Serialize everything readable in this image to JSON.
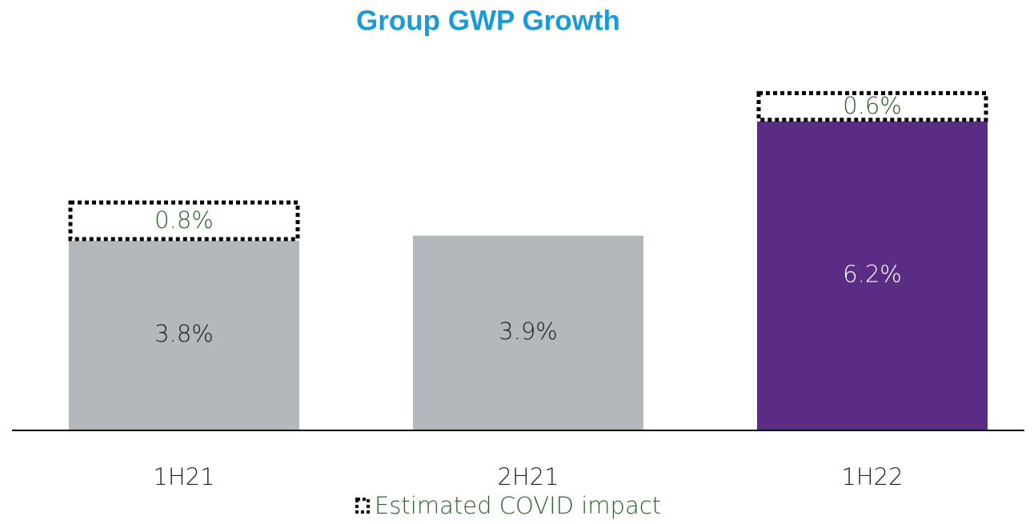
{
  "chart_data": {
    "type": "stacked_bar",
    "title": "Group GWP Growth",
    "categories": [
      "1H21",
      "2H21",
      "1H22"
    ],
    "series": [
      {
        "colors": [
          "#b2b8bb",
          "#b2b8bb",
          "#5b2c83"
        ],
        "values": [
          3.8,
          3.9,
          6.2
        ],
        "value_labels": [
          "3.8%",
          "3.9%",
          "6.2%"
        ]
      },
      {
        "name": "Estimated COVID impact",
        "color": "#000000",
        "style": "dotted-outline",
        "values": [
          0.8,
          null,
          0.6
        ],
        "value_labels": [
          "0.8%",
          null,
          "0.6%"
        ]
      }
    ],
    "ylim": [
      0,
      7
    ],
    "legend": "bottom"
  }
}
